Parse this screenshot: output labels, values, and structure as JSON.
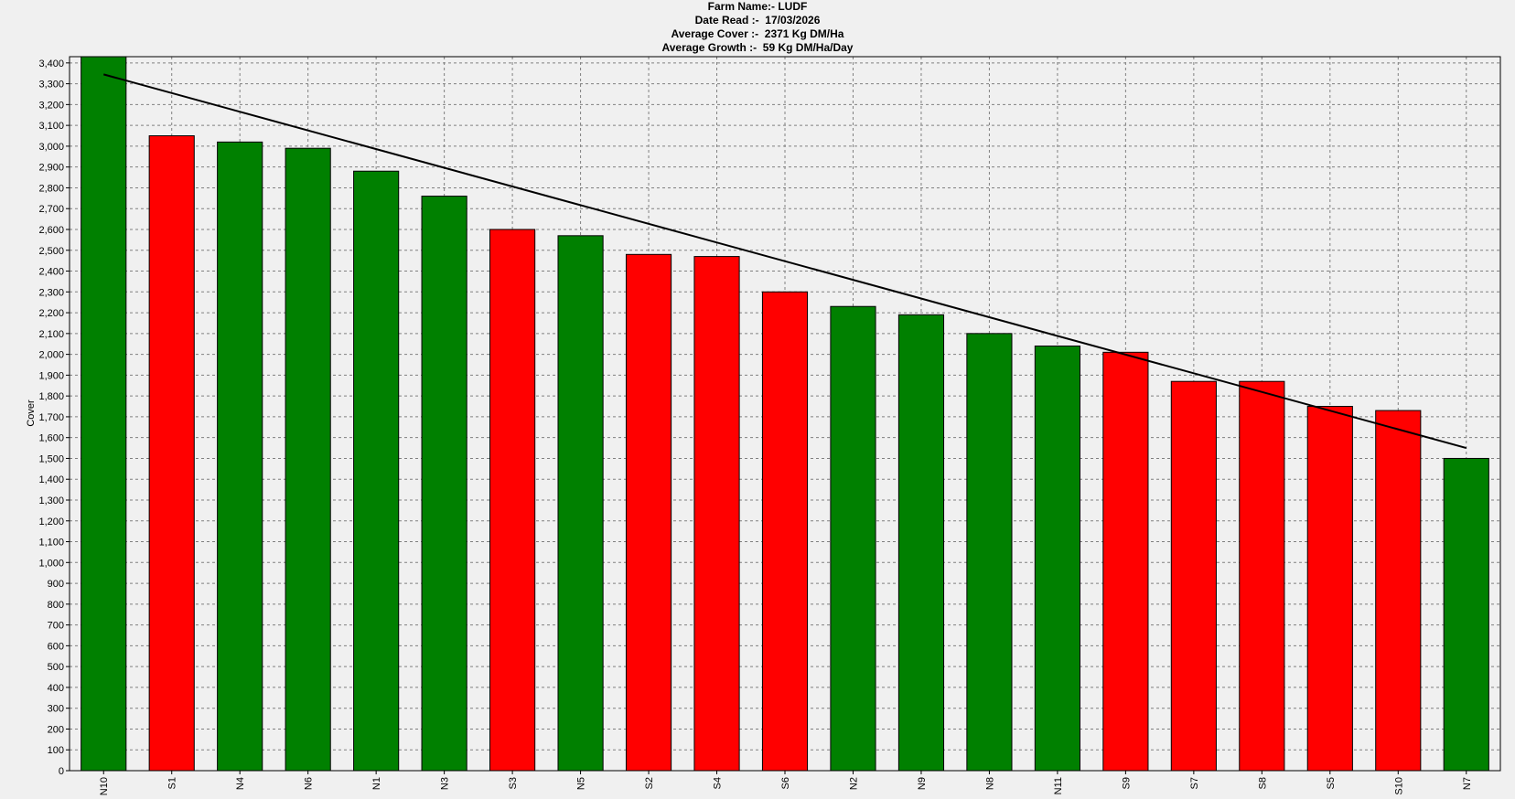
{
  "header": {
    "farm_name": "Farm Name:- LUDF",
    "date_read": "Date Read :-  17/03/2026",
    "average_cover": "Average Cover :-  2371 Kg DM/Ha",
    "average_growth": "Average Growth :-  59 Kg DM/Ha/Day"
  },
  "colors": {
    "green": "#008000",
    "red": "#ff0000",
    "trend": "#000000",
    "background": "#f0f0f0",
    "grid": "#808080"
  },
  "chart_data": {
    "type": "bar",
    "title": "",
    "xlabel": "",
    "ylabel": "Cover",
    "ylim": [
      0,
      3430
    ],
    "y_tick_step": 100,
    "grid": true,
    "categories": [
      "N10",
      "S1",
      "N4",
      "N6",
      "N1",
      "N3",
      "S3",
      "N5",
      "S2",
      "S4",
      "S6",
      "N2",
      "N9",
      "N8",
      "N11",
      "S9",
      "S7",
      "S8",
      "S5",
      "S10",
      "N7"
    ],
    "values": [
      3430,
      3050,
      3020,
      2990,
      2880,
      2760,
      2600,
      2570,
      2480,
      2470,
      2300,
      2230,
      2190,
      2100,
      2040,
      2010,
      1870,
      1870,
      1750,
      1730,
      1500
    ],
    "bar_colors": [
      "green",
      "red",
      "green",
      "green",
      "green",
      "green",
      "red",
      "green",
      "red",
      "red",
      "red",
      "green",
      "green",
      "green",
      "green",
      "red",
      "red",
      "red",
      "red",
      "red",
      "green"
    ],
    "trend_line": {
      "start": 3345,
      "end": 1550
    }
  }
}
